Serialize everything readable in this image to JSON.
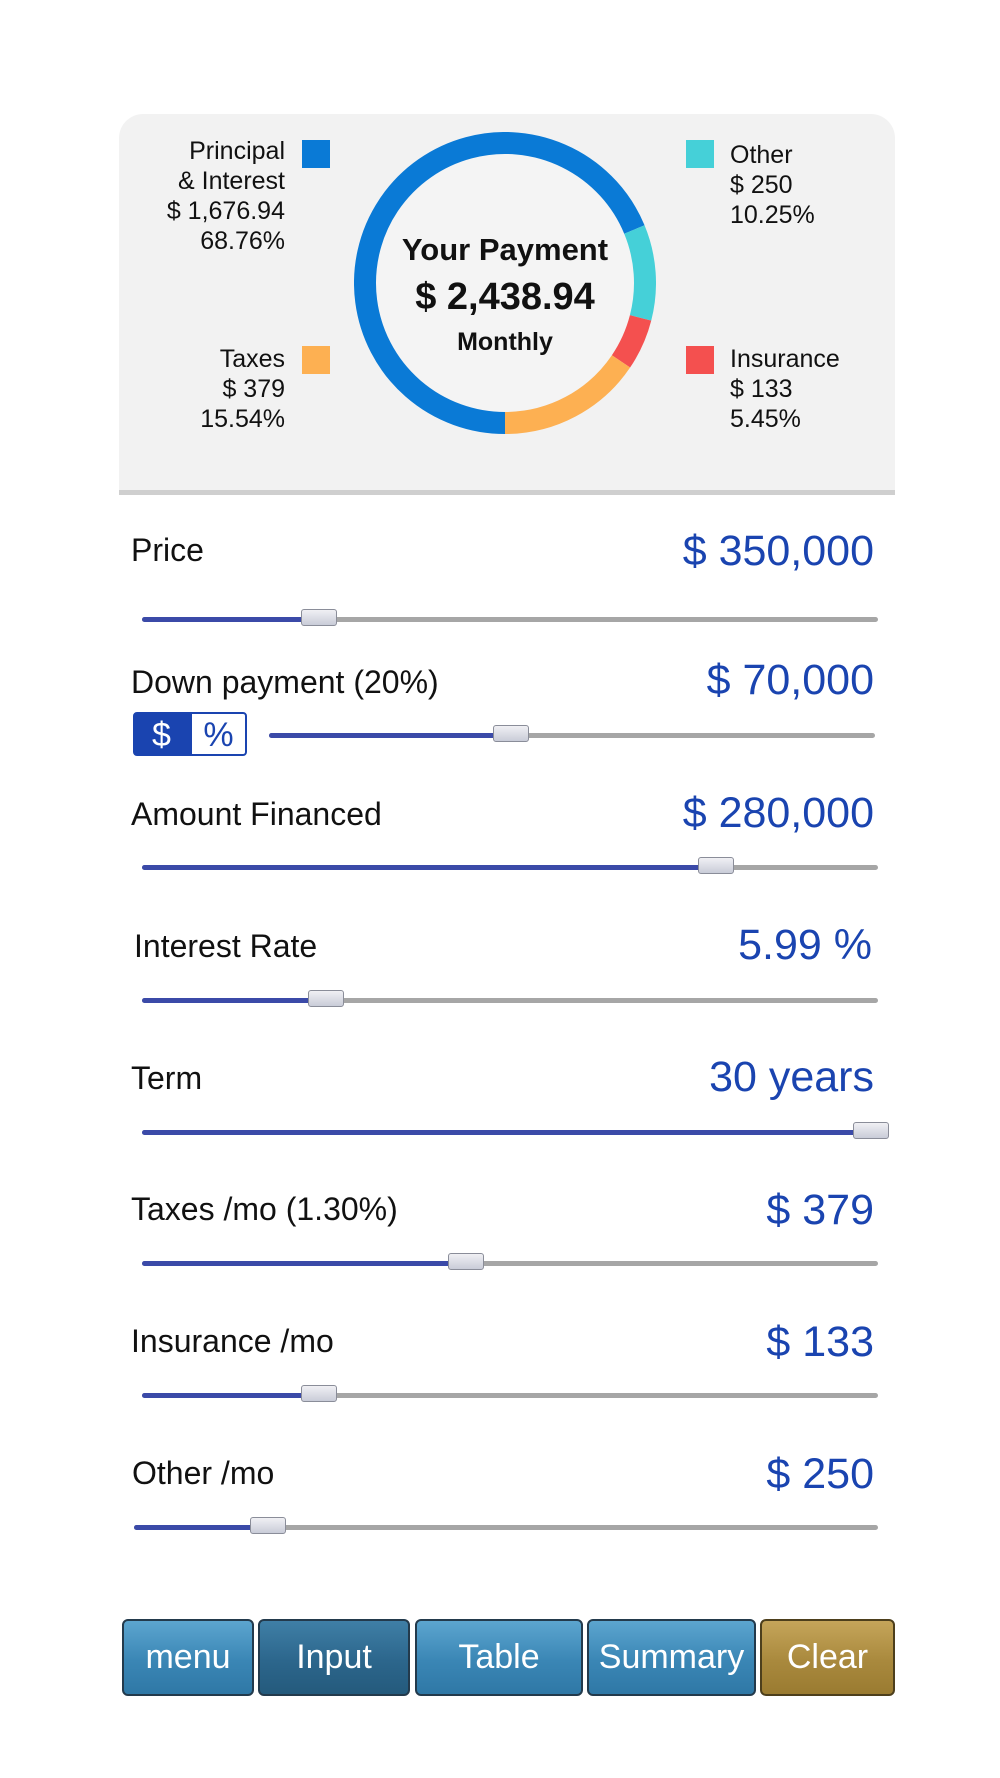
{
  "summary": {
    "title": "Your Payment",
    "amount": "$ 2,438.94",
    "period": "Monthly",
    "legend": {
      "principal": {
        "line1": "Principal",
        "line2": "& Interest",
        "value": "$ 1,676.94",
        "percent": "68.76%",
        "color": "#0a7ad6"
      },
      "other": {
        "line1": "Other",
        "value": "$ 250",
        "percent": "10.25%",
        "color": "#45d0d8"
      },
      "taxes": {
        "line1": "Taxes",
        "value": "$ 379",
        "percent": "15.54%",
        "color": "#fdb052"
      },
      "insurance": {
        "line1": "Insurance",
        "value": "$ 133",
        "percent": "5.45%",
        "color": "#f4504f"
      }
    },
    "donut_fractions": {
      "principal": 0.6876,
      "other": 0.1025,
      "insurance": 0.0545,
      "taxes": 0.1554
    }
  },
  "fields": {
    "price": {
      "label": "Price",
      "value": "$ 350,000",
      "slider_fraction": 0.24
    },
    "down_payment": {
      "label": "Down payment (20%)",
      "value": "$ 70,000",
      "slider_fraction": 0.4,
      "toggle_dollar": "$",
      "toggle_percent": "%"
    },
    "amount_financed": {
      "label": "Amount Financed",
      "value": "$ 280,000",
      "slider_fraction": 0.78
    },
    "interest_rate": {
      "label": "Interest Rate",
      "value": "5.99 %",
      "slider_fraction": 0.25
    },
    "term": {
      "label": "Term",
      "value": "30 years",
      "slider_fraction": 1.0
    },
    "taxes": {
      "label": "Taxes /mo (1.30%)",
      "value": "$ 379",
      "slider_fraction": 0.44
    },
    "insurance": {
      "label": "Insurance /mo",
      "value": "$ 133",
      "slider_fraction": 0.24
    },
    "other": {
      "label": "Other /mo",
      "value": "$ 250",
      "slider_fraction": 0.18
    }
  },
  "nav": {
    "menu": "menu",
    "input": "Input",
    "table": "Table",
    "summary": "Summary",
    "clear": "Clear"
  },
  "colors": {
    "accent_blue": "#1a44b0",
    "slider_fill": "#3b4aa8",
    "nav_blue": "#3a86b5",
    "nav_active": "#2c668c",
    "nav_clear": "#a9893d"
  }
}
